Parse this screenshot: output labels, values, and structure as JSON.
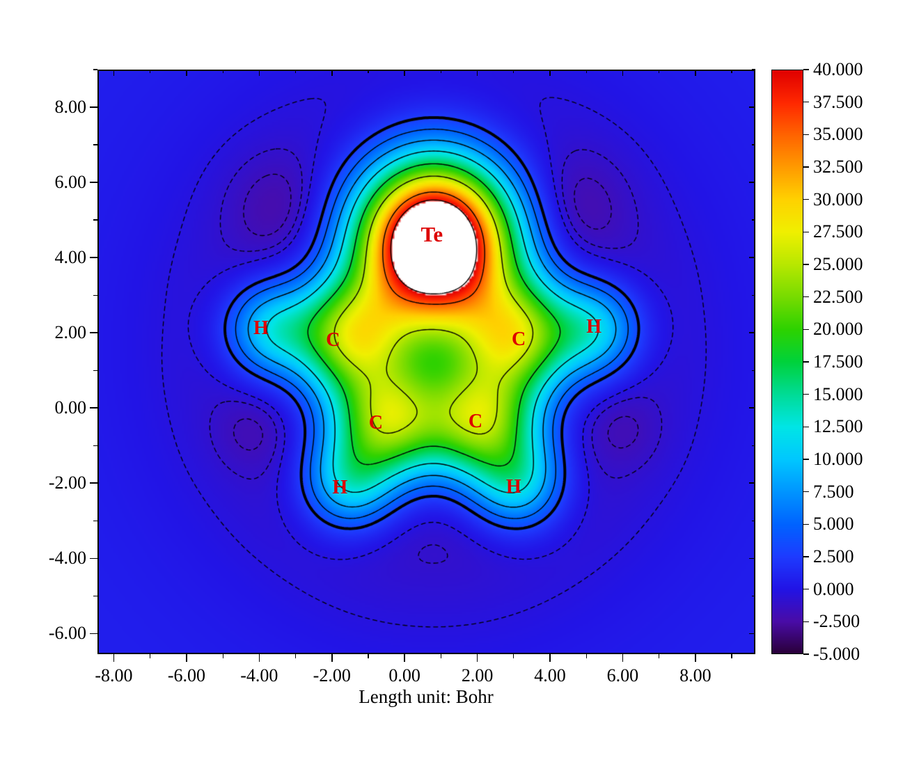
{
  "figure": {
    "background": "#ffffff"
  },
  "chart_data": {
    "type": "heatmap",
    "subtype": "filled-contour-map-with-contour-lines",
    "xlabel": "Length unit: Bohr",
    "x_range": [
      -8.45,
      9.65
    ],
    "y_range": [
      -6.55,
      9.0
    ],
    "x_tick_values": [
      -8,
      -6,
      -4,
      -2,
      0,
      2,
      4,
      6,
      8
    ],
    "x_tick_labels": [
      "-8.00",
      "-6.00",
      "-4.00",
      "-2.00",
      "0.00",
      "2.00",
      "4.00",
      "6.00",
      "8.00"
    ],
    "y_tick_values": [
      8,
      6,
      4,
      2,
      0,
      -2,
      -4,
      -6
    ],
    "y_tick_labels": [
      "8.00",
      "6.00",
      "4.00",
      "2.00",
      "0.00",
      "-2.00",
      "-4.00",
      "-6.00"
    ],
    "minor_tick_step": 1,
    "grid": false,
    "legend_position": "right-colorbar",
    "colorbar": {
      "min": -5.0,
      "max": 40.0,
      "tick_step": 2.5,
      "tick_labels": [
        "40.000",
        "37.500",
        "35.000",
        "32.500",
        "30.000",
        "27.500",
        "25.000",
        "22.500",
        "20.000",
        "17.500",
        "15.000",
        "12.500",
        "10.000",
        "7.500",
        "5.000",
        "2.500",
        "0.000",
        "-2.500",
        "-5.000"
      ],
      "stops": [
        [
          -5.0,
          "#2a0038"
        ],
        [
          -2.5,
          "#4a0ca8"
        ],
        [
          0.0,
          "#2214e6"
        ],
        [
          2.5,
          "#1e3cff"
        ],
        [
          5.0,
          "#0064ff"
        ],
        [
          7.5,
          "#0096ff"
        ],
        [
          10.0,
          "#00c8ff"
        ],
        [
          12.5,
          "#00e6e6"
        ],
        [
          15.0,
          "#00dc96"
        ],
        [
          17.5,
          "#00d23c"
        ],
        [
          20.0,
          "#2ed200"
        ],
        [
          22.5,
          "#78dc00"
        ],
        [
          25.0,
          "#b8e800"
        ],
        [
          27.5,
          "#f0f000"
        ],
        [
          30.0,
          "#ffd200"
        ],
        [
          32.5,
          "#ff9b00"
        ],
        [
          35.0,
          "#ff6400"
        ],
        [
          37.5,
          "#ff2800"
        ],
        [
          40.0,
          "#e00000"
        ]
      ],
      "over_color": "#ffffff"
    },
    "atom_labels": [
      {
        "text": "Te",
        "x": 0.75,
        "y": 4.62,
        "emphasis": true
      },
      {
        "text": "H",
        "x": -3.95,
        "y": 2.12
      },
      {
        "text": "C",
        "x": -1.97,
        "y": 1.8
      },
      {
        "text": "C",
        "x": 3.14,
        "y": 1.82
      },
      {
        "text": "H",
        "x": 5.21,
        "y": 2.15
      },
      {
        "text": "C",
        "x": -0.79,
        "y": -0.4
      },
      {
        "text": "C",
        "x": 1.95,
        "y": -0.37
      },
      {
        "text": "H",
        "x": -1.78,
        "y": -2.12
      },
      {
        "text": "H",
        "x": 3.0,
        "y": -2.1
      }
    ],
    "label_color": "#dd0000",
    "field_model": {
      "offset": 0.75,
      "gaussians": [
        {
          "x": 0.8,
          "y": 4.45,
          "a": 55,
          "s": 2.0
        },
        {
          "x": -1.55,
          "y": 1.95,
          "a": 22,
          "s": 1.5
        },
        {
          "x": 3.1,
          "y": 1.95,
          "a": 22,
          "s": 1.5
        },
        {
          "x": -0.5,
          "y": -0.35,
          "a": 22,
          "s": 1.5
        },
        {
          "x": 2.1,
          "y": -0.35,
          "a": 22,
          "s": 1.5
        },
        {
          "x": -3.7,
          "y": 2.1,
          "a": 11,
          "s": 1.2
        },
        {
          "x": 5.2,
          "y": 2.1,
          "a": 11,
          "s": 1.2
        },
        {
          "x": -1.55,
          "y": -1.95,
          "a": 11,
          "s": 1.2
        },
        {
          "x": 3.1,
          "y": -1.95,
          "a": 11,
          "s": 1.2
        },
        {
          "x": 0.8,
          "y": 1.7,
          "a": 10,
          "s": 2.7
        },
        {
          "x": 0.8,
          "y": 1.7,
          "a": -4.6,
          "s": 6.2
        },
        {
          "x": -3.47,
          "y": 5.4,
          "a": -1.5,
          "s": 1.4
        },
        {
          "x": 4.67,
          "y": 5.4,
          "a": -1.5,
          "s": 1.4
        },
        {
          "x": -4.3,
          "y": -0.65,
          "a": -0.9,
          "s": 1.0
        },
        {
          "x": 6.07,
          "y": -0.6,
          "a": -0.9,
          "s": 1.0
        }
      ]
    },
    "contour_levels": {
      "dashed_negative": [
        -1.7,
        -1.0,
        -0.3
      ],
      "solid_thick": [
        2.8
      ],
      "solid_thin": [
        5,
        8,
        12,
        18,
        25,
        35,
        40
      ]
    }
  }
}
